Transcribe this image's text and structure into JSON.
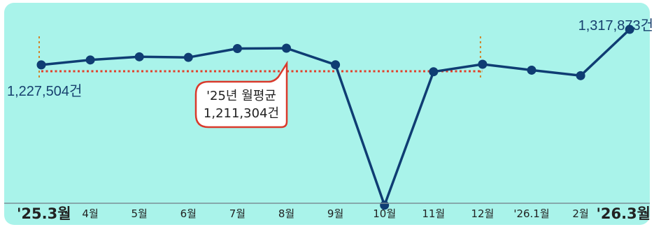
{
  "chart_data": {
    "type": "line",
    "categories": [
      "'25.3월",
      "4월",
      "5월",
      "6월",
      "7월",
      "8월",
      "9월",
      "10월",
      "11월",
      "12월",
      "'26.1월",
      "2월",
      "'26.3월"
    ],
    "series": [
      {
        "values": [
          1227504,
          1240000,
          1248000,
          1246500,
          1269000,
          1270000,
          1227800,
          870000,
          1210000,
          1229000,
          1214000,
          1200000,
          1317873
        ]
      }
    ],
    "ylim": [
      875000,
      1350000
    ],
    "reference_line": {
      "value": 1211304,
      "label_line1": "'25년 월평균",
      "label_line2": "1,211,304건"
    },
    "annotations": {
      "start": "1,227,504건",
      "end": "1,317,873건"
    },
    "bold_categories": [
      "'25.3월",
      "'26.3월"
    ],
    "grid": false,
    "colors": {
      "line": "#0f3d73",
      "reference": "#e2402b",
      "marker_line": "#d0842a",
      "background": "#a9f3ea",
      "axis": "#7b8f97",
      "label": "#17406e",
      "callout_border": "#d93a2c",
      "callout_text": "#222222"
    }
  }
}
